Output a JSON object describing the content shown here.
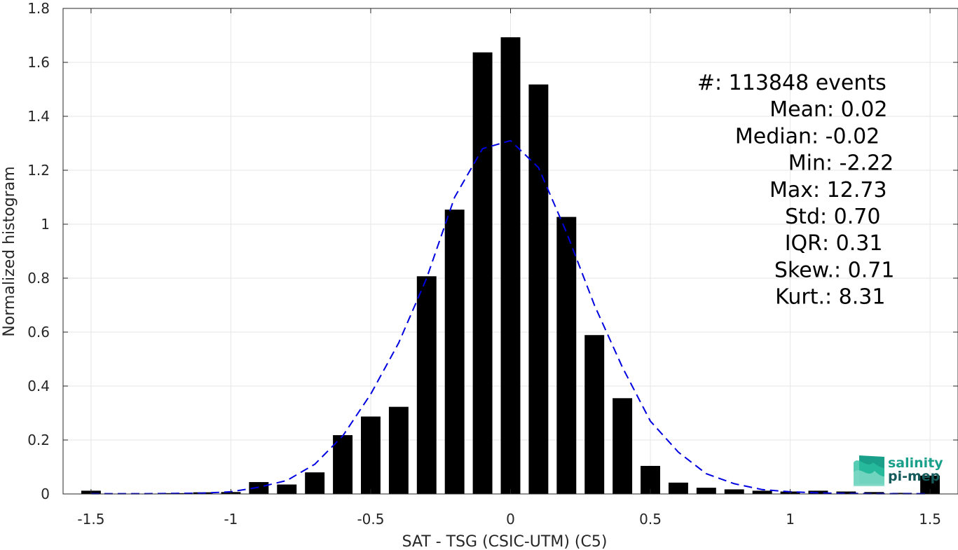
{
  "chart_data": {
    "type": "bar",
    "title": "",
    "xlabel": "SAT - TSG (CSIC-UTM) (C5)",
    "ylabel": "Normalized histogram",
    "xlim": [
      -1.6,
      1.6
    ],
    "ylim": [
      0,
      1.8
    ],
    "grid": true,
    "xticks": [
      -1.5,
      -1,
      -0.5,
      0,
      0.5,
      1,
      1.5
    ],
    "xtick_labels": [
      "-1.5",
      "-1",
      "-0.5",
      "0",
      "0.5",
      "1",
      "1.5"
    ],
    "yticks": [
      0,
      0.2,
      0.4,
      0.6,
      0.8,
      1,
      1.2,
      1.4,
      1.6,
      1.8
    ],
    "ytick_labels": [
      "0",
      "0.2",
      "0.4",
      "0.6",
      "0.8",
      "1",
      "1.2",
      "1.4",
      "1.6",
      "1.8"
    ],
    "bar_color": "#000000",
    "bar_width": 0.07,
    "x": [
      -1.5,
      -1.4,
      -1.3,
      -1.2,
      -1.1,
      -1.0,
      -0.9,
      -0.8,
      -0.7,
      -0.6,
      -0.5,
      -0.4,
      -0.3,
      -0.2,
      -0.1,
      0.0,
      0.1,
      0.2,
      0.3,
      0.4,
      0.5,
      0.6,
      0.7,
      0.8,
      0.9,
      1.0,
      1.1,
      1.2,
      1.3,
      1.4,
      1.5
    ],
    "values": [
      0.012,
      0.0,
      0.0,
      0.003,
      0.006,
      0.007,
      0.044,
      0.035,
      0.08,
      0.218,
      0.287,
      0.323,
      0.807,
      1.054,
      1.637,
      1.693,
      1.518,
      1.027,
      0.589,
      0.355,
      0.104,
      0.042,
      0.023,
      0.017,
      0.012,
      0.009,
      0.012,
      0.009,
      0.007,
      0.004,
      0.068
    ],
    "fit_curve": {
      "style": "dashed",
      "color": "#0000e0",
      "x": [
        -1.5,
        -1.4,
        -1.3,
        -1.2,
        -1.1,
        -1.0,
        -0.9,
        -0.8,
        -0.7,
        -0.6,
        -0.5,
        -0.4,
        -0.3,
        -0.2,
        -0.1,
        0.0,
        0.1,
        0.2,
        0.3,
        0.4,
        0.5,
        0.6,
        0.7,
        0.8,
        0.9,
        1.0,
        1.1,
        1.2,
        1.3,
        1.4,
        1.5
      ],
      "y": [
        0.001,
        0.001,
        0.001,
        0.002,
        0.003,
        0.008,
        0.025,
        0.05,
        0.11,
        0.215,
        0.37,
        0.56,
        0.8,
        1.1,
        1.28,
        1.31,
        1.21,
        0.97,
        0.7,
        0.47,
        0.27,
        0.155,
        0.075,
        0.038,
        0.016,
        0.008,
        0.004,
        0.002,
        0.001,
        0.001,
        0.001
      ]
    },
    "stats": [
      {
        "label": "#  ",
        "value": ": 113848 events"
      },
      {
        "label": "Mean ",
        "value": ": 0.02"
      },
      {
        "label": "Median ",
        "value": ": -0.02"
      },
      {
        "label": "Min ",
        "value": ": -2.22"
      },
      {
        "label": "Max ",
        "value": ": 12.73"
      },
      {
        "label": "Std ",
        "value": ": 0.70"
      },
      {
        "label": "IQR ",
        "value": ": 0.31"
      },
      {
        "label": "Skew. ",
        "value": ": 0.71"
      },
      {
        "label": "Kurt. ",
        "value": ": 8.31"
      }
    ]
  },
  "logo": {
    "line1": "salinity",
    "line2": "pi-mep",
    "color1": "#1aa08a",
    "color2": "#145a5a"
  }
}
